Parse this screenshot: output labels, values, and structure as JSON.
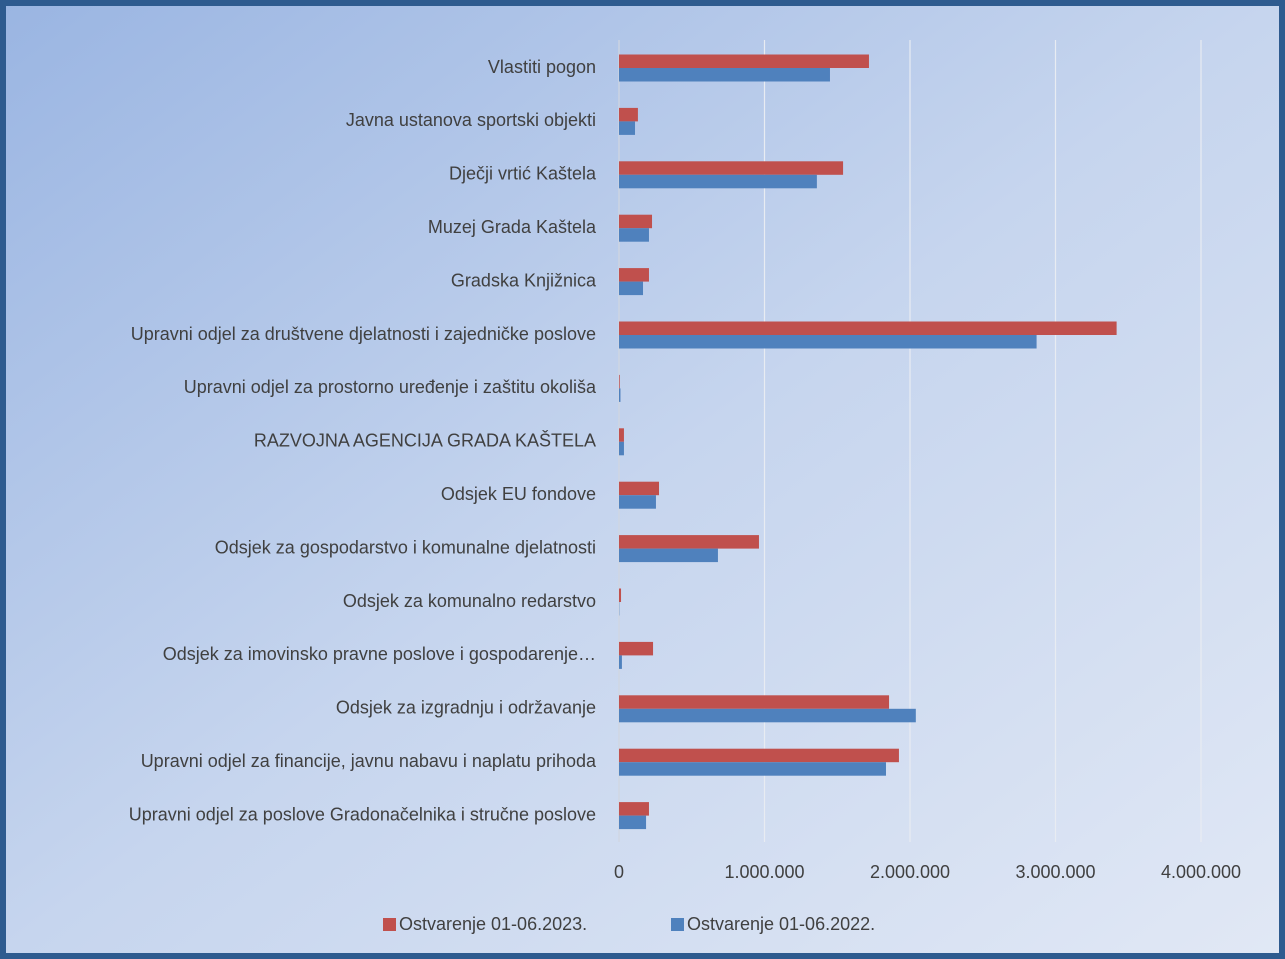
{
  "chart_data": {
    "type": "hbar",
    "categories": [
      "Vlastiti pogon",
      "Javna ustanova sportski objekti",
      "Dječji vrtić Kaštela",
      "Muzej Grada Kaštela",
      "Gradska Knjižnica",
      "Upravni odjel za društvene djelatnosti i zajedničke poslove",
      "Upravni odjel za prostorno uređenje i zaštitu okoliša",
      "RAZVOJNA AGENCIJA GRADA KAŠTELA",
      "Odsjek  EU fondove",
      "Odsjek za gospodarstvo i komunalne djelatnosti",
      "Odsjek za komunalno redarstvo",
      "Odsjek za imovinsko pravne poslove i gospodarenje…",
      "Odsjek za izgradnju i održavanje",
      "Upravni odjel za financije, javnu nabavu i naplatu prihoda",
      "Upravni odjel za poslove Gradonačelnika i stručne poslove"
    ],
    "series": [
      {
        "name": "Ostvarenje 01-06.2023.",
        "color": "#c0504d",
        "values": [
          1718000,
          130000,
          1540000,
          227000,
          206000,
          3420000,
          5000,
          34000,
          275000,
          962000,
          14000,
          234000,
          1856000,
          1924000,
          206000
        ]
      },
      {
        "name": "Ostvarenje 01-06.2022.",
        "color": "#4f81bd",
        "values": [
          1450000,
          110000,
          1360000,
          206000,
          165000,
          2870000,
          10000,
          34000,
          254000,
          680000,
          2000,
          20000,
          2040000,
          1835000,
          186000
        ]
      }
    ],
    "xlim": [
      0,
      4000000
    ],
    "xticks": [
      0,
      {
        "value": 1000000,
        "label": "1.000.000"
      },
      {
        "value": 2000000,
        "label": "2.000.000"
      },
      {
        "value": 3000000,
        "label": "3.000.000"
      },
      {
        "value": 4000000,
        "label": "4.000.000"
      }
    ],
    "grid": true,
    "legend": "bottom"
  }
}
